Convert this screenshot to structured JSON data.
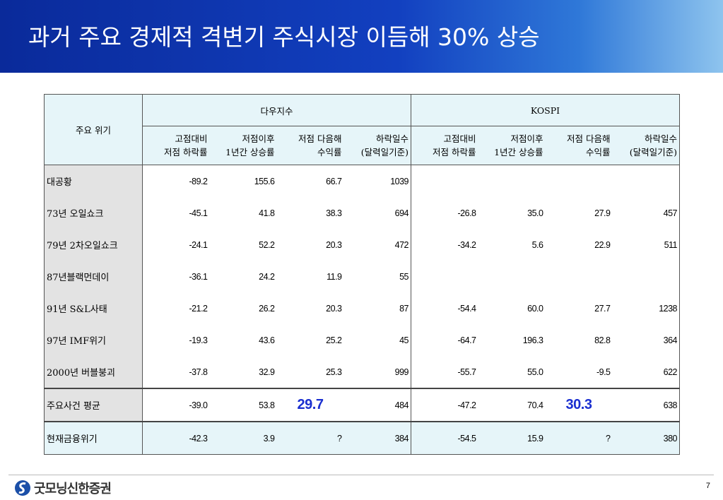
{
  "header": {
    "title": "과거 주요 경제적 격변기 주식시장 이듬해 30% 상승"
  },
  "table": {
    "corner": "주요 위기",
    "groups": [
      "다우지수",
      "KOSPI"
    ],
    "columns": [
      "고점대비\n저점 하락률",
      "저점이후\n1년간 상승률",
      "저점 다음해\n수익률",
      "하락일수\n(달력일기준)",
      "고점대비\n저점 하락률",
      "저점이후\n1년간 상승률",
      "저점 다음해\n수익률",
      "하락일수\n(달력일기준)"
    ],
    "rows": [
      {
        "label": "대공황",
        "cells": [
          "-89.2",
          "155.6",
          "66.7",
          "1039",
          null,
          null,
          null,
          null
        ]
      },
      {
        "label": "73년 오일쇼크",
        "cells": [
          "-45.1",
          "41.8",
          "38.3",
          "694",
          "-26.8",
          "35.0",
          "27.9",
          "457"
        ]
      },
      {
        "label": "79년 2차오일쇼크",
        "cells": [
          "-24.1",
          "52.2",
          "20.3",
          "472",
          "-34.2",
          "5.6",
          "22.9",
          "511"
        ]
      },
      {
        "label": "87년블랙먼데이",
        "cells": [
          "-36.1",
          "24.2",
          "11.9",
          "55",
          null,
          null,
          null,
          null
        ]
      },
      {
        "label": "91년 S&L사태",
        "cells": [
          "-21.2",
          "26.2",
          "20.3",
          "87",
          "-54.4",
          "60.0",
          "27.7",
          "1238"
        ]
      },
      {
        "label": "97년 IMF위기",
        "cells": [
          "-19.3",
          "43.6",
          "25.2",
          "45",
          "-64.7",
          "196.3",
          "82.8",
          "364"
        ]
      },
      {
        "label": "2000년 버블붕괴",
        "cells": [
          "-37.8",
          "32.9",
          "25.3",
          "999",
          "-55.7",
          "55.0",
          "-9.5",
          "622"
        ]
      },
      {
        "label": "주요사건 평균",
        "cells": [
          "-39.0",
          "53.8",
          "29.7",
          "484",
          "-47.2",
          "70.4",
          "30.3",
          "638"
        ]
      },
      {
        "label": "현재금융위기",
        "cells": [
          "-42.3",
          "3.9",
          "?",
          "384",
          "-54.5",
          "15.9",
          "?",
          "380"
        ]
      }
    ]
  },
  "footer": {
    "logo": "굿모닝신한증권",
    "page": "7"
  }
}
